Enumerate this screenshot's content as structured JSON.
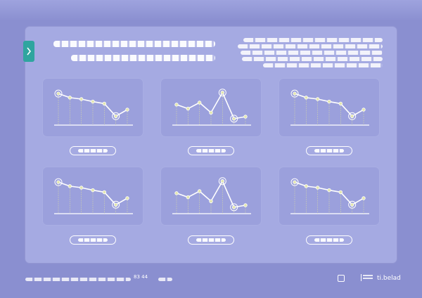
{
  "colors": {
    "background": "#8a8fd0",
    "card": "#a5aae2",
    "panel": "#9ba0dc",
    "line": "#ffffff",
    "marker_fill": "#e3e6b0",
    "guide": "#dfe39e",
    "accent": "#2fa59f"
  },
  "header": {
    "title": "",
    "paragraph": ""
  },
  "nav": {
    "icon": "chevron-right-icon"
  },
  "chart_data": [
    {
      "type": "line",
      "x": [
        1,
        2,
        3,
        4,
        5,
        6,
        7
      ],
      "values": [
        90,
        82,
        79,
        74,
        70,
        45,
        58
      ],
      "highlight": [
        0,
        5
      ],
      "ylim": [
        30,
        100
      ],
      "category_label": ""
    },
    {
      "type": "line",
      "x": [
        1,
        2,
        3,
        4,
        5,
        6,
        7
      ],
      "values": [
        68,
        60,
        72,
        52,
        92,
        40,
        44
      ],
      "highlight": [
        4,
        5
      ],
      "ylim": [
        30,
        100
      ],
      "category_label": ""
    },
    {
      "type": "line",
      "x": [
        1,
        2,
        3,
        4,
        5,
        6,
        7
      ],
      "values": [
        90,
        82,
        79,
        74,
        70,
        45,
        58
      ],
      "highlight": [
        0,
        5
      ],
      "ylim": [
        30,
        100
      ],
      "category_label": ""
    },
    {
      "type": "line",
      "x": [
        1,
        2,
        3,
        4,
        5,
        6,
        7
      ],
      "values": [
        90,
        82,
        79,
        74,
        70,
        45,
        58
      ],
      "highlight": [
        0,
        5
      ],
      "ylim": [
        30,
        100
      ],
      "category_label": ""
    },
    {
      "type": "line",
      "x": [
        1,
        2,
        3,
        4,
        5,
        6,
        7
      ],
      "values": [
        68,
        60,
        72,
        52,
        92,
        40,
        44
      ],
      "highlight": [
        4,
        5
      ],
      "ylim": [
        30,
        100
      ],
      "category_label": ""
    },
    {
      "type": "line",
      "x": [
        1,
        2,
        3,
        4,
        5,
        6,
        7
      ],
      "values": [
        90,
        82,
        79,
        74,
        70,
        45,
        58
      ],
      "highlight": [
        0,
        5
      ],
      "ylim": [
        30,
        100
      ],
      "category_label": ""
    }
  ],
  "footer": {
    "handle": "ti.belad",
    "reference": "83  44"
  }
}
